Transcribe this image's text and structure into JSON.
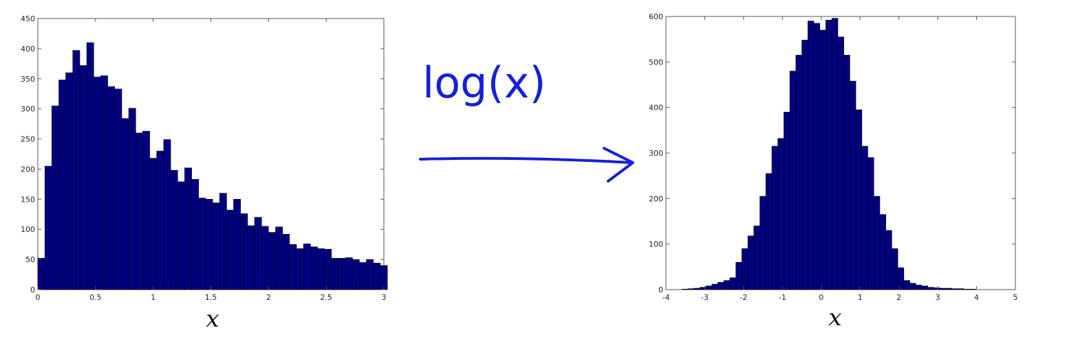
{
  "chart_data": [
    {
      "type": "bar",
      "xlabel": "x",
      "xlim": [
        0,
        3
      ],
      "ylim": [
        0,
        450
      ],
      "bin_width": 0.0606,
      "xticks": [
        "0",
        "0.5",
        "1",
        "1.5",
        "2",
        "2.5",
        "3"
      ],
      "yticks": [
        "0",
        "50",
        "100",
        "150",
        "200",
        "250",
        "300",
        "350",
        "400",
        "450"
      ],
      "bin_starts": [
        0.0,
        0.061,
        0.121,
        0.182,
        0.242,
        0.303,
        0.364,
        0.424,
        0.485,
        0.545,
        0.606,
        0.667,
        0.727,
        0.788,
        0.848,
        0.909,
        0.97,
        1.03,
        1.091,
        1.152,
        1.212,
        1.273,
        1.333,
        1.394,
        1.455,
        1.515,
        1.576,
        1.636,
        1.697,
        1.758,
        1.818,
        1.879,
        1.939,
        2.0,
        2.061,
        2.121,
        2.182,
        2.242,
        2.303,
        2.364,
        2.424,
        2.485,
        2.545,
        2.606,
        2.667,
        2.727,
        2.788,
        2.848,
        2.909,
        2.97
      ],
      "values": [
        52,
        205,
        305,
        348,
        360,
        397,
        372,
        410,
        353,
        355,
        337,
        333,
        284,
        301,
        260,
        263,
        218,
        230,
        249,
        198,
        179,
        202,
        183,
        152,
        150,
        144,
        160,
        132,
        150,
        126,
        106,
        120,
        105,
        95,
        104,
        92,
        75,
        68,
        76,
        71,
        68,
        67,
        52,
        52,
        53,
        50,
        45,
        50,
        44,
        40
      ],
      "bar_color": "#00007f"
    },
    {
      "type": "bar",
      "xlabel": "x",
      "xlim": [
        -4,
        5
      ],
      "ylim": [
        0,
        600
      ],
      "bin_width": 0.1545,
      "xticks": [
        "-4",
        "-3",
        "-2",
        "-1",
        "0",
        "1",
        "2",
        "3",
        "4",
        "5"
      ],
      "yticks": [
        "0",
        "100",
        "200",
        "300",
        "400",
        "500",
        "600"
      ],
      "bin_starts": [
        -3.59,
        -3.435,
        -3.281,
        -3.126,
        -2.972,
        -2.817,
        -2.663,
        -2.508,
        -2.354,
        -2.199,
        -2.045,
        -1.89,
        -1.736,
        -1.581,
        -1.427,
        -1.272,
        -1.118,
        -0.963,
        -0.809,
        -0.654,
        -0.5,
        -0.345,
        -0.191,
        -0.036,
        0.118,
        0.273,
        0.427,
        0.582,
        0.736,
        0.891,
        1.045,
        1.2,
        1.354,
        1.509,
        1.663,
        1.818,
        1.972,
        2.127,
        2.281,
        2.436,
        2.59,
        2.745,
        2.899,
        3.054,
        3.208,
        3.363,
        3.517,
        3.672,
        3.826
      ],
      "values": [
        1,
        2,
        3,
        5,
        8,
        12,
        16,
        20,
        26,
        60,
        90,
        118,
        140,
        205,
        255,
        315,
        332,
        390,
        480,
        515,
        548,
        590,
        585,
        570,
        592,
        596,
        555,
        515,
        458,
        395,
        315,
        290,
        205,
        165,
        130,
        90,
        48,
        20,
        14,
        10,
        8,
        5,
        4,
        3,
        3,
        2,
        2,
        1,
        1
      ],
      "bar_color": "#00007f"
    }
  ],
  "annotation": {
    "label": "log(x)",
    "color": "#1620d8"
  }
}
